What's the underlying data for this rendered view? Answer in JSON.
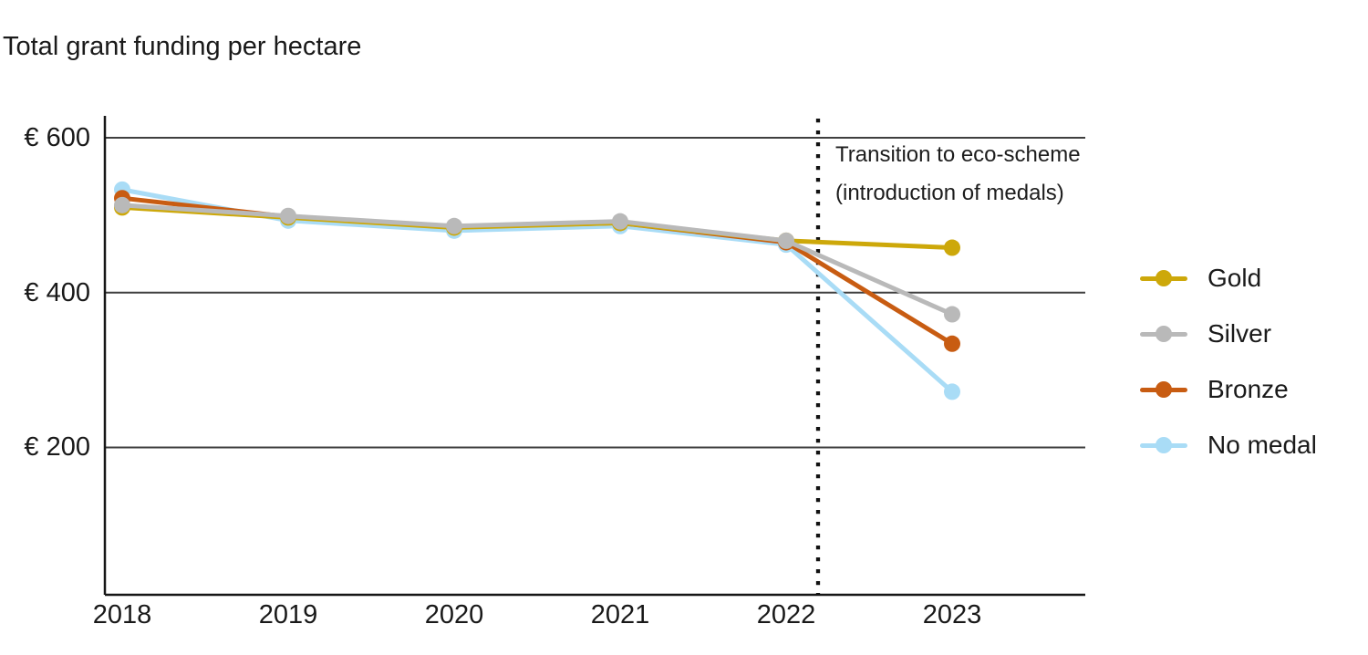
{
  "title": "Total grant funding per hectare",
  "chart_data": {
    "type": "line",
    "title": "Total grant funding per hectare",
    "categories": [
      "2018",
      "2019",
      "2020",
      "2021",
      "2022",
      "2023"
    ],
    "series": [
      {
        "name": "Gold",
        "color": "#CDA80A",
        "values": [
          510,
          497,
          484,
          490,
          467,
          458
        ]
      },
      {
        "name": "Silver",
        "color": "#B9B9B9",
        "values": [
          513,
          499,
          486,
          492,
          467,
          372
        ]
      },
      {
        "name": "Bronze",
        "color": "#C85C12",
        "values": [
          522,
          498,
          485,
          490,
          465,
          334
        ]
      },
      {
        "name": "No medal",
        "color": "#A9DCF6",
        "values": [
          533,
          493,
          480,
          486,
          462,
          272
        ]
      }
    ],
    "x_axis": {
      "tick_labels": [
        "2018",
        "2019",
        "2020",
        "2021",
        "2022",
        "2023"
      ]
    },
    "y_axis": {
      "tick_values": [
        600,
        400,
        200
      ],
      "tick_labels": [
        "€ 600",
        "€ 400",
        "€ 200"
      ],
      "currency": "EUR",
      "range_approx": [
        10,
        630
      ]
    },
    "annotation": {
      "text_line1": "Transition to eco-scheme",
      "text_line2": "(introduction of medals)",
      "marker": "dotted-vertical-line",
      "x_value": 2022.2
    },
    "legend_position": "right",
    "grid": "horizontal-only"
  },
  "colors": {
    "background": "#ffffff",
    "text": "#1a1a1a",
    "axis": "#161616",
    "gridline": "#3f3f3f",
    "annotation_divider": "#111111"
  }
}
